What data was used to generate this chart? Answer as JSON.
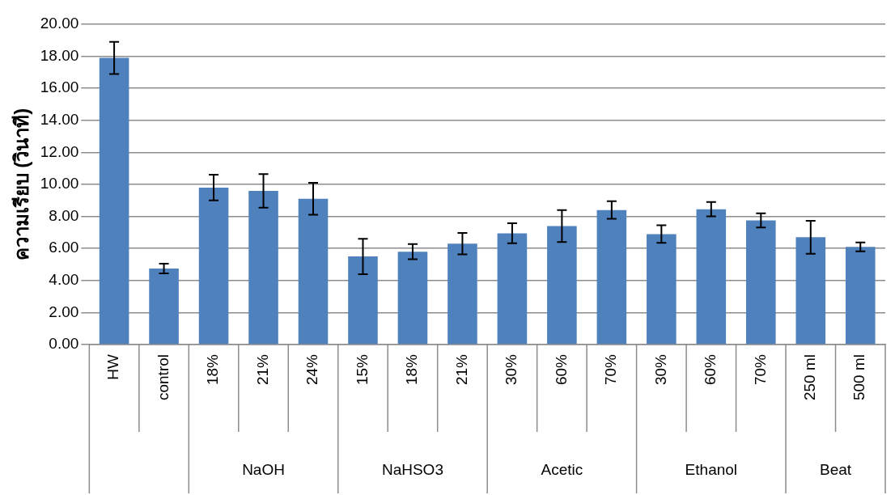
{
  "chart_data": {
    "type": "bar",
    "ylabel": "ความเรียบ (วินาที)",
    "categories": [
      "HW",
      "control",
      "18%",
      "21%",
      "24%",
      "15%",
      "18%",
      "21%",
      "30%",
      "60%",
      "70%",
      "30%",
      "60%",
      "70%",
      "250 ml",
      "500 ml"
    ],
    "values": [
      17.9,
      4.75,
      9.8,
      9.6,
      9.1,
      5.5,
      5.8,
      6.3,
      6.95,
      7.4,
      8.4,
      6.9,
      8.45,
      7.75,
      6.7,
      6.1
    ],
    "errors": [
      1.0,
      0.3,
      0.8,
      1.05,
      1.0,
      1.1,
      0.47,
      0.67,
      0.62,
      1.0,
      0.55,
      0.55,
      0.45,
      0.44,
      1.03,
      0.28
    ],
    "color": "#4f81bd",
    "ylim": [
      0,
      20
    ],
    "yticks": [
      {
        "value": 0,
        "label": "0.00"
      },
      {
        "value": 2,
        "label": "2.00"
      },
      {
        "value": 4,
        "label": "4.00"
      },
      {
        "value": 6,
        "label": "6.00"
      },
      {
        "value": 8,
        "label": "8.00"
      },
      {
        "value": 10,
        "label": "10.00"
      },
      {
        "value": 12,
        "label": "12.00"
      },
      {
        "value": 14,
        "label": "14.00"
      },
      {
        "value": 16,
        "label": "16.00"
      },
      {
        "value": 18,
        "label": "18.00"
      },
      {
        "value": 20,
        "label": "20.00"
      }
    ],
    "grid": "y",
    "legend": false,
    "annotations": [
      "NaOH",
      "NaHSO3",
      "Acetic",
      "Ethanol",
      "Beat"
    ]
  }
}
